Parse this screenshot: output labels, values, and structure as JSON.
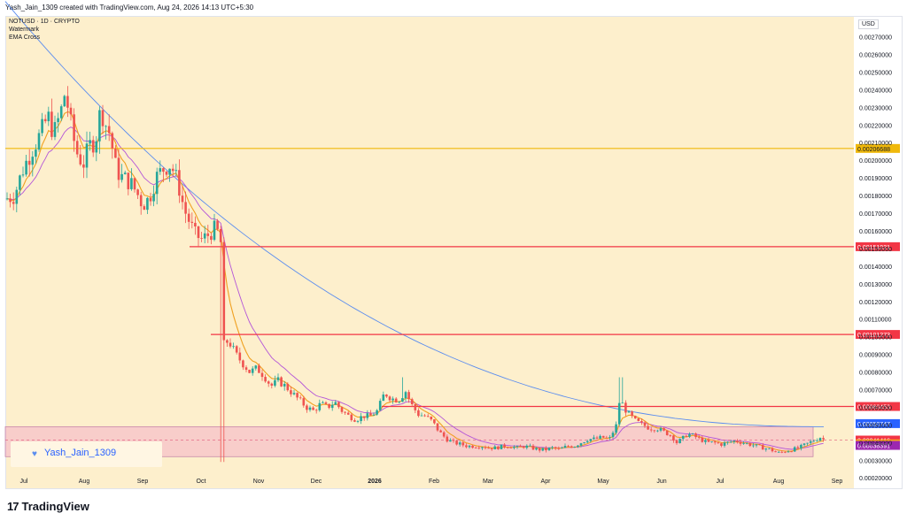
{
  "header": {
    "text": "Yash_Jain_1309 created with TradingView.com, Aug 24, 2026 14:13 UTC+5:30"
  },
  "legend": {
    "symbol": "NOTUSD · 1D · CRYPTO",
    "line2": "Watermark",
    "line3": "EMA Cross"
  },
  "currency": "USD",
  "watermark": "Yash_Jain_1309",
  "footer": {
    "brand": "TradingView",
    "logo_icon": "tradingview-logo-icon"
  },
  "colors": {
    "background": "#fdefcc",
    "candle_up": "#26a69a",
    "candle_down": "#ef5350",
    "ema_fast": "#f0a020",
    "ema_mid": "#b455d8",
    "ema_slow": "#5b8def",
    "hline_red": "#f23645",
    "hline_yellow": "#f0b90b",
    "zone": "#e8a8c8"
  },
  "chart_data": {
    "type": "candlestick",
    "x_tick_labels": [
      "Jul",
      "Aug",
      "Sep",
      "Oct",
      "Nov",
      "Dec",
      "2026",
      "Feb",
      "Mar",
      "Apr",
      "May",
      "Jun",
      "Jul",
      "Aug",
      "Sep"
    ],
    "y_tick_labels": [
      "0.00270000",
      "0.00260000",
      "0.00250000",
      "0.00240000",
      "0.00230000",
      "0.00220000",
      "0.00210000",
      "0.00200000",
      "0.00190000",
      "0.00180000",
      "0.00170000",
      "0.00160000",
      "0.00150000",
      "0.00140000",
      "0.00130000",
      "0.00120000",
      "0.00110000",
      "0.00100000",
      "0.00090000",
      "0.00080000",
      "0.00070000",
      "0.00060000",
      "0.00050000",
      "0.00040000",
      "0.00030000",
      "0.00020000"
    ],
    "ylim": [
      0.000146,
      0.002818
    ],
    "horizontal_levels": [
      {
        "label": "0.00206688",
        "value": 0.00206688,
        "color": "#f0b90b"
      },
      {
        "label": "0.00151021",
        "value": 0.00151021,
        "color": "#f23645"
      },
      {
        "label": "0.00101273",
        "value": 0.00101273,
        "color": "#f23645"
      },
      {
        "label": "0.00060453",
        "value": 0.00060453,
        "color": "#f23645"
      }
    ],
    "price_badges": [
      {
        "label": "0.00050747",
        "value": 0.00050747,
        "color": "#2962ff"
      },
      {
        "label": "0.00041416",
        "value": 0.00041416,
        "color": "#f23645"
      },
      {
        "label": "0.00039288",
        "value": 0.00039288,
        "color": "#f7a21b"
      },
      {
        "label": "0.00038391",
        "value": 0.00038391,
        "color": "#9c27b0"
      }
    ],
    "zone": {
      "top": 0.00049,
      "bottom": 0.00032
    },
    "close_path": [
      [
        0,
        0.00178
      ],
      [
        10,
        0.0018
      ],
      [
        20,
        0.00195
      ],
      [
        30,
        0.00206
      ],
      [
        40,
        0.00215
      ],
      [
        48,
        0.00225
      ],
      [
        55,
        0.00215
      ],
      [
        63,
        0.00228
      ],
      [
        68,
        0.0024
      ],
      [
        72,
        0.00225
      ],
      [
        80,
        0.00205
      ],
      [
        88,
        0.00198
      ],
      [
        95,
        0.00208
      ],
      [
        102,
        0.00212
      ],
      [
        108,
        0.0023
      ],
      [
        112,
        0.00222
      ],
      [
        118,
        0.00215
      ],
      [
        125,
        0.00195
      ],
      [
        132,
        0.0019
      ],
      [
        140,
        0.00188
      ],
      [
        148,
        0.00182
      ],
      [
        155,
        0.00175
      ],
      [
        162,
        0.00178
      ],
      [
        170,
        0.0019
      ],
      [
        178,
        0.00195
      ],
      [
        185,
        0.00198
      ],
      [
        190,
        0.00194
      ],
      [
        196,
        0.00185
      ],
      [
        202,
        0.00172
      ],
      [
        208,
        0.00165
      ],
      [
        214,
        0.00158
      ],
      [
        222,
        0.00155
      ],
      [
        230,
        0.00158
      ],
      [
        238,
        0.00162
      ],
      [
        244,
        0.00152
      ],
      [
        246,
        0.00095
      ],
      [
        252,
        0.00098
      ],
      [
        260,
        0.0009
      ],
      [
        268,
        0.00085
      ],
      [
        276,
        0.0008
      ],
      [
        284,
        0.00082
      ],
      [
        292,
        0.00078
      ],
      [
        300,
        0.00072
      ],
      [
        308,
        0.00075
      ],
      [
        316,
        0.00072
      ],
      [
        324,
        0.00068
      ],
      [
        332,
        0.00064
      ],
      [
        340,
        0.0006
      ],
      [
        348,
        0.00058
      ],
      [
        356,
        0.00062
      ],
      [
        364,
        0.0006
      ],
      [
        372,
        0.00063
      ],
      [
        380,
        0.00058
      ],
      [
        388,
        0.00055
      ],
      [
        396,
        0.00053
      ],
      [
        404,
        0.00055
      ],
      [
        412,
        0.00055
      ],
      [
        420,
        0.00058
      ],
      [
        428,
        0.00068
      ],
      [
        436,
        0.00065
      ],
      [
        444,
        0.00064
      ],
      [
        452,
        0.00069
      ],
      [
        458,
        0.00062
      ],
      [
        466,
        0.00056
      ],
      [
        474,
        0.00055
      ],
      [
        482,
        0.00052
      ],
      [
        490,
        0.00046
      ],
      [
        498,
        0.00042
      ],
      [
        506,
        0.0004
      ],
      [
        514,
        0.00039
      ],
      [
        522,
        0.00038
      ],
      [
        530,
        0.00038
      ],
      [
        538,
        0.00038
      ],
      [
        546,
        0.00037
      ],
      [
        554,
        0.00037
      ],
      [
        562,
        0.00038
      ],
      [
        570,
        0.00038
      ],
      [
        578,
        0.00037
      ],
      [
        586,
        0.00038
      ],
      [
        594,
        0.00037
      ],
      [
        602,
        0.00036
      ],
      [
        610,
        0.00036
      ],
      [
        618,
        0.00037
      ],
      [
        626,
        0.00036
      ],
      [
        634,
        0.00038
      ],
      [
        642,
        0.00038
      ],
      [
        650,
        0.0004
      ],
      [
        658,
        0.00042
      ],
      [
        666,
        0.00042
      ],
      [
        674,
        0.00043
      ],
      [
        682,
        0.00042
      ],
      [
        690,
        0.0005
      ],
      [
        694,
        0.00066
      ],
      [
        698,
        0.0006
      ],
      [
        704,
        0.00056
      ],
      [
        712,
        0.00052
      ],
      [
        720,
        0.0005
      ],
      [
        728,
        0.00048
      ],
      [
        736,
        0.00048
      ],
      [
        744,
        0.00046
      ],
      [
        752,
        0.00044
      ],
      [
        758,
        0.0004
      ],
      [
        764,
        0.00042
      ],
      [
        770,
        0.00045
      ],
      [
        776,
        0.00044
      ],
      [
        784,
        0.00042
      ],
      [
        792,
        0.0004
      ],
      [
        800,
        0.0004
      ],
      [
        808,
        0.00039
      ],
      [
        816,
        0.0004
      ],
      [
        824,
        0.00041
      ],
      [
        832,
        0.0004
      ],
      [
        840,
        0.00039
      ],
      [
        848,
        0.00038
      ],
      [
        856,
        0.00037
      ],
      [
        864,
        0.00036
      ],
      [
        872,
        0.00034
      ],
      [
        880,
        0.00035
      ],
      [
        888,
        0.00036
      ],
      [
        896,
        0.00037
      ],
      [
        904,
        0.00039
      ],
      [
        912,
        0.00041
      ],
      [
        920,
        0.00043
      ],
      [
        926,
        0.00041
      ]
    ]
  }
}
